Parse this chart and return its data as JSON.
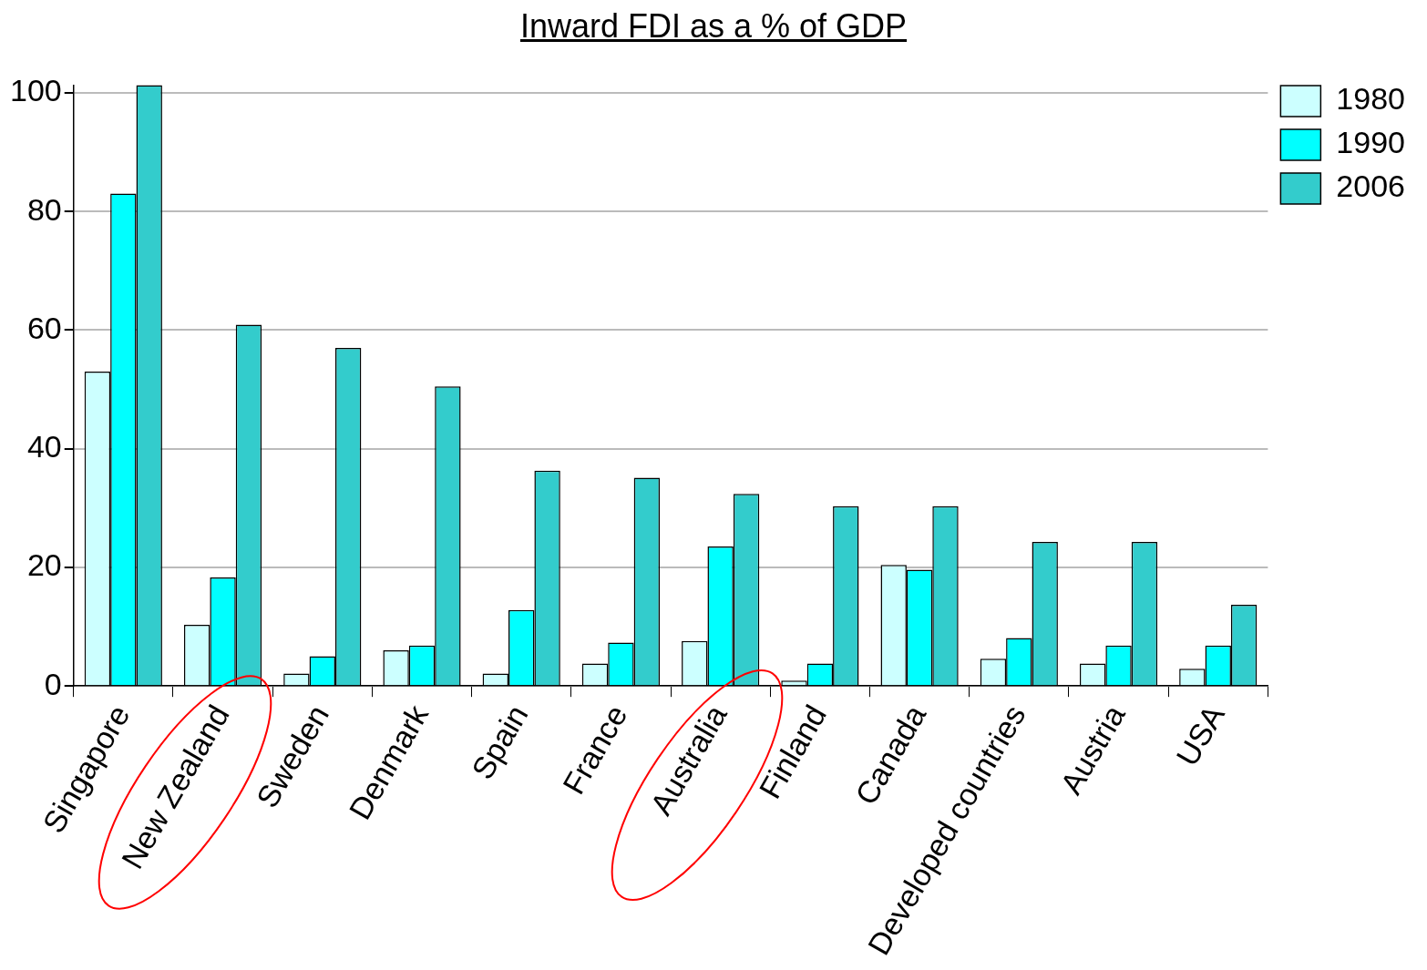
{
  "chart_data": {
    "type": "bar",
    "title": "Inward FDI as a % of GDP",
    "categories": [
      "Singapore",
      "New Zealand",
      "Sweden",
      "Denmark",
      "Spain",
      "France",
      "Australia",
      "Finland",
      "Canada",
      "Developed countries",
      "Austria",
      "USA"
    ],
    "series": [
      {
        "name": "1980",
        "color": "#ccffff",
        "values": [
          53,
          10.3,
          2.1,
          6,
          2.1,
          3.8,
          7.6,
          0.9,
          20.4,
          4.6,
          3.8,
          2.9
        ]
      },
      {
        "name": "1990",
        "color": "#00ffff",
        "values": [
          83,
          18.3,
          5,
          6.8,
          12.8,
          7.3,
          23.5,
          3.8,
          19.6,
          8.1,
          6.8,
          6.8
        ]
      },
      {
        "name": "2006",
        "color": "#33cccc",
        "values": [
          101.3,
          60.9,
          57,
          50.5,
          36.3,
          35.1,
          32.4,
          30.3,
          30.3,
          24.3,
          24.3,
          13.7
        ]
      }
    ],
    "ylim": [
      0,
      101.3
    ],
    "yticks": [
      0,
      20,
      40,
      60,
      80,
      100
    ],
    "grid": "y",
    "legend": "right"
  }
}
